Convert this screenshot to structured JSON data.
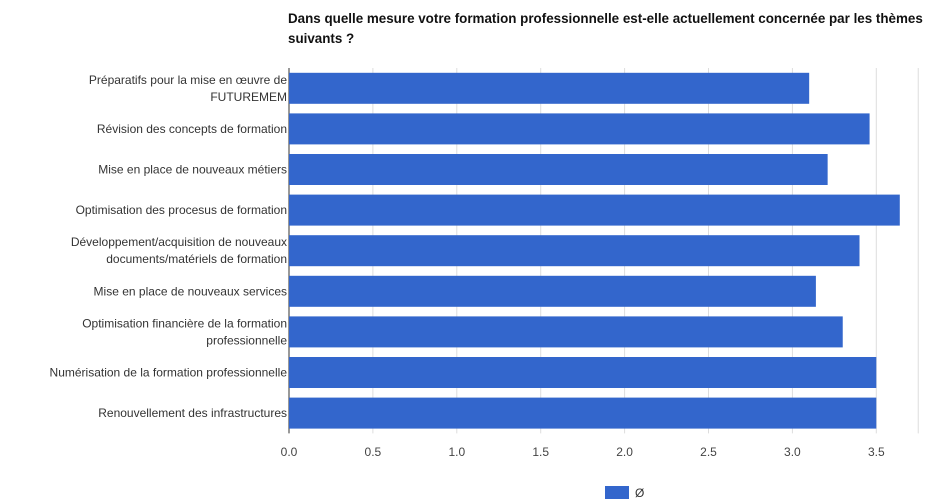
{
  "chart_data": {
    "type": "bar",
    "orientation": "horizontal",
    "title": "Dans quelle mesure votre formation professionnelle est-elle actuellement concernée par les thèmes suivants ?",
    "categories": [
      [
        "Préparatifs pour la mise en œuvre de",
        "FUTUREMEM"
      ],
      [
        "Révision des concepts de formation"
      ],
      [
        "Mise en place de nouveaux métiers"
      ],
      [
        "Optimisation des procesus de formation"
      ],
      [
        "Développement/acquisition de nouveaux",
        "documents/matériels de formation"
      ],
      [
        "Mise en place de nouveaux services"
      ],
      [
        "Optimisation financière de la formation",
        "professionnelle"
      ],
      [
        "Numérisation de la formation professionnelle"
      ],
      [
        "Renouvellement des infrastructures"
      ]
    ],
    "series": [
      {
        "name": "Ø",
        "color": "#3366cc",
        "values": [
          3.1,
          3.46,
          3.21,
          3.64,
          3.4,
          3.14,
          3.3,
          3.5,
          3.5
        ]
      }
    ],
    "xlim": [
      0,
      3.75
    ],
    "xticks": [
      "0.0",
      "0.5",
      "1.0",
      "1.5",
      "2.0",
      "2.5",
      "3.0",
      "3.5"
    ],
    "tick_values": [
      0,
      0.5,
      1.0,
      1.5,
      2.0,
      2.5,
      3.0,
      3.5
    ],
    "grid": true,
    "legend_position": "bottom"
  }
}
